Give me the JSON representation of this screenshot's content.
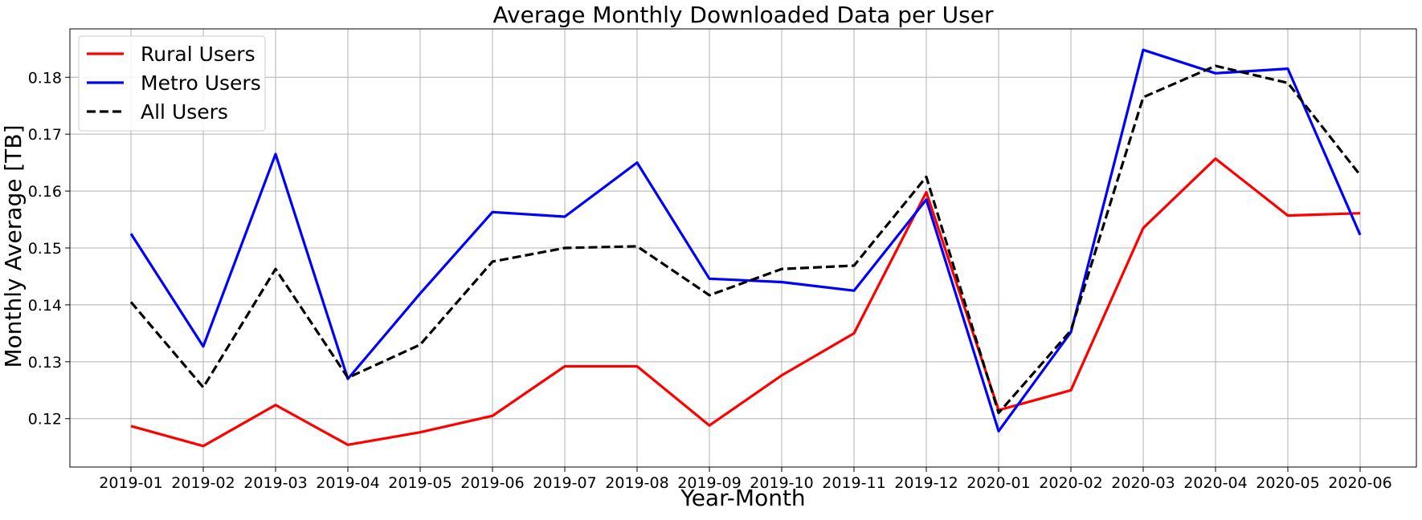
{
  "chart_data": {
    "type": "line",
    "title": "Average Monthly Downloaded Data per User",
    "xlabel": "Year-Month",
    "ylabel": "Monthly Average [TB]",
    "categories": [
      "2019-01",
      "2019-02",
      "2019-03",
      "2019-04",
      "2019-05",
      "2019-06",
      "2019-07",
      "2019-08",
      "2019-09",
      "2019-10",
      "2019-11",
      "2019-12",
      "2020-01",
      "2020-02",
      "2020-03",
      "2020-04",
      "2020-05",
      "2020-06"
    ],
    "ylim": [
      0.1115,
      0.1885
    ],
    "yticks": [
      0.12,
      0.13,
      0.14,
      0.15,
      0.16,
      0.17,
      0.18
    ],
    "ytick_labels": [
      "0.12",
      "0.13",
      "0.14",
      "0.15",
      "0.16",
      "0.17",
      "0.18"
    ],
    "grid": true,
    "legend_position": "top-left",
    "series": [
      {
        "name": "Rural Users",
        "color": "#ff0000",
        "style": "solid",
        "values": [
          0.1187,
          0.1152,
          0.1224,
          0.1154,
          0.1176,
          0.1205,
          0.1292,
          0.1292,
          0.1188,
          0.1276,
          0.135,
          0.1598,
          0.1215,
          0.125,
          0.1535,
          0.1657,
          0.1557,
          0.1561
        ]
      },
      {
        "name": "Metro Users",
        "color": "#0000ff",
        "style": "solid",
        "values": [
          0.1525,
          0.1327,
          0.1665,
          0.127,
          0.142,
          0.1563,
          0.1555,
          0.165,
          0.1446,
          0.144,
          0.1425,
          0.1585,
          0.1178,
          0.1352,
          0.1848,
          0.1807,
          0.1815,
          0.1523
        ]
      },
      {
        "name": "All Users",
        "color": "#000000",
        "style": "dashed",
        "values": [
          0.1405,
          0.1255,
          0.1463,
          0.1272,
          0.133,
          0.1476,
          0.15,
          0.1503,
          0.1417,
          0.1463,
          0.1469,
          0.1625,
          0.121,
          0.1355,
          0.1765,
          0.182,
          0.179,
          0.1628
        ]
      }
    ]
  }
}
